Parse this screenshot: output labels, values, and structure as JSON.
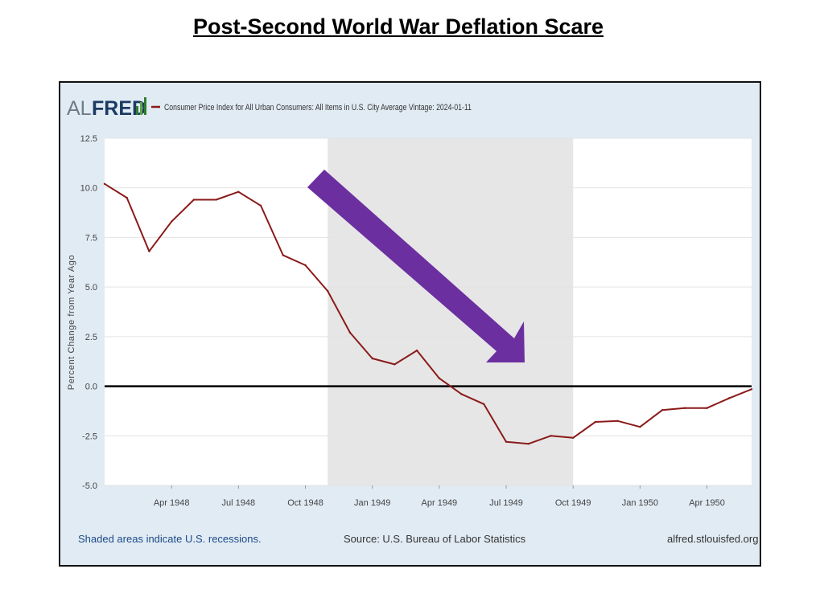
{
  "slide": {
    "title": "Post-Second World War Deflation Scare"
  },
  "header": {
    "logo_text_al": "AL",
    "logo_text_fred": "FRED",
    "logo_icon": "bar-chart-icon",
    "series_label": "Consumer Price Index for All Urban Consumers: All Items in U.S. City Average Vintage: 2024-01-11"
  },
  "footer": {
    "recession_note": "Shaded areas indicate U.S. recessions.",
    "source": "Source: U.S. Bureau of Labor Statistics",
    "site": "alfred.stlouisfed.org"
  },
  "colors": {
    "series_line": "#8b1a1a",
    "recession_shade": "#e6e6e6",
    "arrow": "#6b2fa0",
    "frame_bg": "#e1ebf4",
    "zero_line": "#000000"
  },
  "chart_data": {
    "type": "line",
    "title": "",
    "xlabel": "",
    "ylabel": "Percent Change from Year Ago",
    "ylim": [
      -5.0,
      12.5
    ],
    "yticks": [
      "12.5",
      "10.0",
      "7.5",
      "5.0",
      "2.5",
      "0.0",
      "-2.5",
      "-5.0"
    ],
    "xtick_labels": [
      "Apr 1948",
      "Jul 1948",
      "Oct 1948",
      "Jan 1949",
      "Apr 1949",
      "Jul 1949",
      "Oct 1949",
      "Jan 1950",
      "Apr 1950"
    ],
    "x": [
      "1948-01",
      "1948-02",
      "1948-03",
      "1948-04",
      "1948-05",
      "1948-06",
      "1948-07",
      "1948-08",
      "1948-09",
      "1948-10",
      "1948-11",
      "1948-12",
      "1949-01",
      "1949-02",
      "1949-03",
      "1949-04",
      "1949-05",
      "1949-06",
      "1949-07",
      "1949-08",
      "1949-09",
      "1949-10",
      "1949-11",
      "1949-12",
      "1950-01",
      "1950-02",
      "1950-03",
      "1950-04",
      "1950-05",
      "1950-06"
    ],
    "series": [
      {
        "name": "Consumer Price Index for All Urban Consumers: All Items in U.S. City Average Vintage: 2024-01-11",
        "values": [
          10.2,
          9.5,
          6.8,
          8.3,
          9.4,
          9.4,
          9.8,
          9.1,
          6.6,
          6.1,
          4.8,
          2.7,
          1.4,
          1.1,
          1.8,
          0.4,
          -0.4,
          -0.9,
          -2.8,
          -2.9,
          -2.5,
          -2.6,
          -1.8,
          -1.75,
          -2.05,
          -1.2,
          -1.1,
          -1.1,
          -0.6,
          -0.15
        ]
      }
    ],
    "recession": {
      "start": "1948-11",
      "end": "1949-10"
    },
    "zero_line": true,
    "grid": true,
    "legend": "top-left",
    "annotation": "arrow pointing down-right through recession"
  }
}
